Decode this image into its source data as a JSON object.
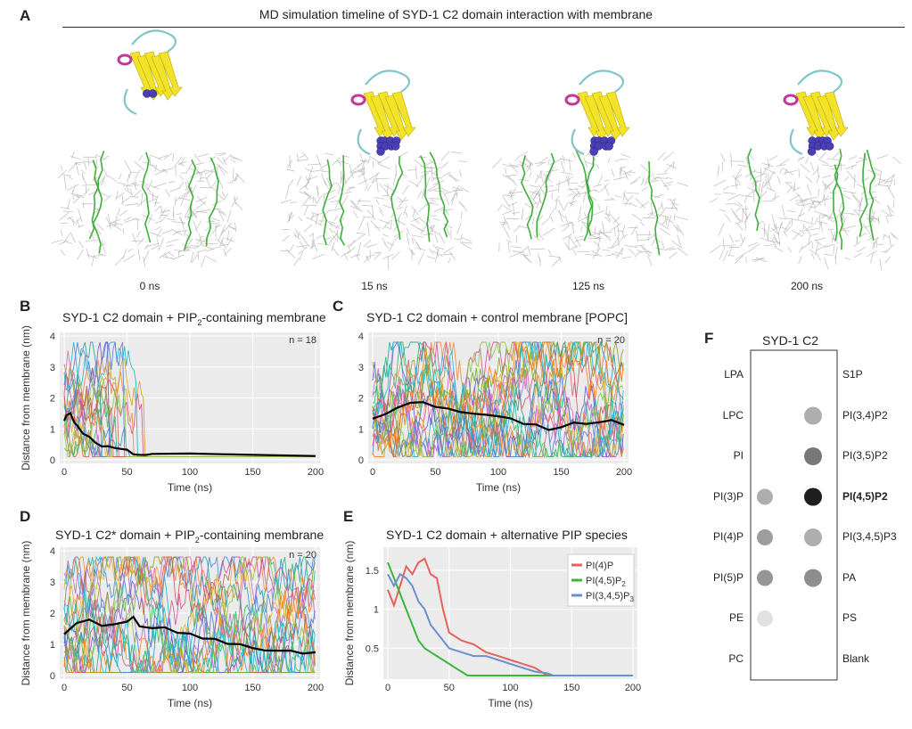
{
  "panel_a": {
    "letter": "A",
    "title": "MD simulation timeline of SYD-1 C2 domain interaction with membrane",
    "frames": [
      {
        "time_label": "0 ns",
        "docked": false
      },
      {
        "time_label": "15 ns",
        "docked": true
      },
      {
        "time_label": "125 ns",
        "docked": true
      },
      {
        "time_label": "200 ns",
        "docked": true
      }
    ],
    "colors": {
      "beta_sheet": "#f2e32a",
      "helix": "#c0399a",
      "loop": "#7ec6c9",
      "basic_residues": "#4a3fb5",
      "lipid": "#b9b3b3",
      "pip2": "#3fae3a"
    }
  },
  "panel_b": {
    "letter": "B",
    "title": "SYD-1 C2 domain + PIP2-containing membrane",
    "title_pre": "SYD-1 C2 domain + PIP",
    "title_sub": "2",
    "title_post": "-containing membrane",
    "n_label": "n = 18",
    "xlabel": "Time (ns)",
    "ylabel": "Distance from membrane (nm)"
  },
  "panel_c": {
    "letter": "C",
    "title": "SYD-1 C2 domain + control membrane [POPC]",
    "n_label": "n = 20",
    "xlabel": "Time (ns)"
  },
  "panel_d": {
    "letter": "D",
    "title": "SYD-1 C2* domain + PIP2-containing membrane",
    "title_pre": "SYD-1 C2* domain + PIP",
    "title_sub": "2",
    "title_post": "-containing membrane",
    "n_label": "n = 20",
    "xlabel": "Time (ns)",
    "ylabel": "Distance from membrane (nm)"
  },
  "panel_e": {
    "letter": "E",
    "title": "SYD-1 C2 domain + alternative PIP species",
    "xlabel": "Time (ns)",
    "ylabel": "Distance from membrane (nm)",
    "legend": [
      {
        "label": "PI(4)P",
        "color": "#e8615a"
      },
      {
        "label": "PI(4,5)P2",
        "color": "#3cb53c"
      },
      {
        "label": "PI(3,4,5)P3",
        "color": "#6a8fd1"
      }
    ]
  },
  "panel_f": {
    "letter": "F",
    "title": "SYD-1 C2",
    "rows": [
      {
        "left": "LPA",
        "right": "S1P",
        "left_spot": 0,
        "right_spot": 0
      },
      {
        "left": "LPC",
        "right": "PI(3,4)P2",
        "left_spot": 0,
        "right_spot": 0.3
      },
      {
        "left": "PI",
        "right": "PI(3,5)P2",
        "left_spot": 0,
        "right_spot": 0.55
      },
      {
        "left": "PI(3)P",
        "right": "PI(4,5)P2",
        "left_spot": 0.4,
        "right_spot": 0.95
      },
      {
        "left": "PI(4)P",
        "right": "PI(3,4,5)P3",
        "left_spot": 0.5,
        "right_spot": 0.3
      },
      {
        "left": "PI(5)P",
        "right": "PA",
        "left_spot": 0.55,
        "right_spot": 0.45
      },
      {
        "left": "PE",
        "right": "PS",
        "left_spot": 0.1,
        "right_spot": 0
      },
      {
        "left": "PC",
        "right": "Blank",
        "left_spot": 0,
        "right_spot": 0
      }
    ],
    "bold_label": "PI(4,5)P2"
  },
  "chart_data": [
    {
      "id": "B",
      "type": "line",
      "title": "SYD-1 C2 domain + PIP2-containing membrane",
      "xlabel": "Time (ns)",
      "ylabel": "Distance from membrane (nm)",
      "xlim": [
        0,
        200
      ],
      "ylim": [
        0,
        4
      ],
      "xticks": [
        0,
        50,
        100,
        150,
        200
      ],
      "yticks": [
        0,
        1,
        2,
        3,
        4
      ],
      "grid": true,
      "n": 18,
      "mean_trace": {
        "x": [
          0,
          2,
          5,
          8,
          10,
          15,
          20,
          25,
          30,
          35,
          40,
          45,
          50,
          55,
          60,
          65,
          70,
          100,
          150,
          200
        ],
        "y": [
          1.3,
          1.5,
          1.45,
          1.2,
          1.1,
          0.9,
          0.75,
          0.6,
          0.45,
          0.4,
          0.35,
          0.3,
          0.3,
          0.22,
          0.18,
          0.15,
          0.15,
          0.15,
          0.15,
          0.15
        ]
      },
      "series_behavior": "18 colored trajectories fluctuate between 0.1 and 3.8 nm, all bind membrane by ~65 ns"
    },
    {
      "id": "C",
      "type": "line",
      "title": "SYD-1 C2 domain + control membrane [POPC]",
      "xlabel": "Time (ns)",
      "ylabel": "",
      "xlim": [
        0,
        200
      ],
      "ylim": [
        0,
        4
      ],
      "xticks": [
        0,
        50,
        100,
        150,
        200
      ],
      "yticks": [
        0,
        1,
        2,
        3,
        4
      ],
      "grid": true,
      "n": 20,
      "mean_trace": {
        "x": [
          0,
          10,
          20,
          30,
          40,
          50,
          60,
          70,
          80,
          90,
          100,
          110,
          120,
          130,
          140,
          150,
          160,
          170,
          180,
          190,
          200
        ],
        "y": [
          1.3,
          1.5,
          1.7,
          1.8,
          1.85,
          1.7,
          1.6,
          1.5,
          1.5,
          1.4,
          1.4,
          1.3,
          1.2,
          1.1,
          1.0,
          1.1,
          1.2,
          1.15,
          1.2,
          1.3,
          1.1
        ]
      },
      "series_behavior": "20 colored trajectories fluctuate between 0.1 and 3.9 nm throughout"
    },
    {
      "id": "D",
      "type": "line",
      "title": "SYD-1 C2* domain + PIP2-containing membrane",
      "xlabel": "Time (ns)",
      "ylabel": "Distance from membrane (nm)",
      "xlim": [
        0,
        200
      ],
      "ylim": [
        0,
        4
      ],
      "xticks": [
        0,
        50,
        100,
        150,
        200
      ],
      "yticks": [
        0,
        1,
        2,
        3,
        4
      ],
      "grid": true,
      "n": 20,
      "mean_trace": {
        "x": [
          0,
          10,
          20,
          30,
          40,
          50,
          55,
          60,
          70,
          80,
          90,
          100,
          110,
          120,
          130,
          140,
          150,
          160,
          170,
          180,
          190,
          200
        ],
        "y": [
          1.3,
          1.7,
          1.8,
          1.6,
          1.7,
          1.75,
          1.9,
          1.6,
          1.5,
          1.55,
          1.4,
          1.3,
          1.2,
          1.15,
          1.0,
          0.95,
          0.9,
          0.85,
          0.8,
          0.85,
          0.75,
          0.8
        ]
      },
      "series_behavior": "20 colored trajectories fluctuate between 0.1 and 3.8 nm"
    },
    {
      "id": "E",
      "type": "line",
      "title": "SYD-1 C2 domain + alternative PIP species",
      "xlabel": "Time (ns)",
      "ylabel": "Distance from membrane (nm)",
      "xlim": [
        0,
        200
      ],
      "ylim": [
        0.15,
        1.75
      ],
      "xticks": [
        0,
        50,
        100,
        150,
        200
      ],
      "yticks": [
        0.5,
        1.0,
        1.5
      ],
      "grid": true,
      "legend_position": "top-right",
      "series": [
        {
          "name": "PI(4)P",
          "color": "#e8615a",
          "x": [
            0,
            5,
            10,
            15,
            20,
            25,
            30,
            35,
            40,
            45,
            50,
            60,
            70,
            80,
            90,
            100,
            110,
            120,
            125,
            130,
            200
          ],
          "y": [
            1.25,
            1.05,
            1.3,
            1.55,
            1.45,
            1.6,
            1.65,
            1.45,
            1.4,
            1.0,
            0.7,
            0.6,
            0.55,
            0.45,
            0.4,
            0.35,
            0.3,
            0.25,
            0.2,
            0.15,
            0.15
          ]
        },
        {
          "name": "PI(4,5)P2",
          "color": "#3cb53c",
          "x": [
            0,
            5,
            10,
            15,
            20,
            25,
            30,
            35,
            40,
            45,
            50,
            55,
            60,
            65,
            70,
            200
          ],
          "y": [
            1.6,
            1.4,
            1.2,
            1.0,
            0.8,
            0.6,
            0.5,
            0.45,
            0.4,
            0.35,
            0.3,
            0.25,
            0.2,
            0.15,
            0.15,
            0.15
          ]
        },
        {
          "name": "PI(3,4,5)P3",
          "color": "#6a8fd1",
          "x": [
            0,
            5,
            10,
            15,
            20,
            25,
            30,
            35,
            40,
            45,
            50,
            60,
            70,
            80,
            90,
            100,
            110,
            120,
            130,
            135,
            200
          ],
          "y": [
            1.45,
            1.3,
            1.45,
            1.4,
            1.3,
            1.1,
            1.0,
            0.8,
            0.7,
            0.6,
            0.5,
            0.45,
            0.4,
            0.4,
            0.35,
            0.3,
            0.25,
            0.2,
            0.18,
            0.15,
            0.15
          ]
        }
      ]
    }
  ]
}
